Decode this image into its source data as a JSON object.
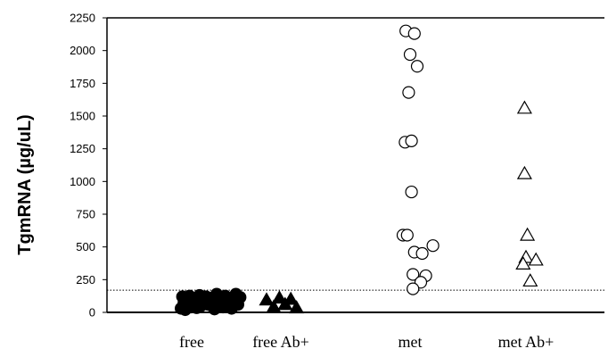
{
  "chart_data": {
    "type": "scatter",
    "ylabel": "TgmRNA (µg/uL)",
    "ylim": [
      0,
      2250
    ],
    "yticks": [
      0,
      250,
      500,
      750,
      1000,
      1250,
      1500,
      1750,
      2000,
      2250
    ],
    "categories": [
      "free",
      "free Ab+",
      "met",
      "met Ab+"
    ],
    "cutoff_line": 170,
    "series": [
      {
        "category": "free",
        "marker": "filled-circle",
        "points": [
          {
            "x": -0.15,
            "y": 30
          },
          {
            "x": -0.13,
            "y": 120
          },
          {
            "x": -0.11,
            "y": 75
          },
          {
            "x": -0.09,
            "y": 20
          },
          {
            "x": -0.07,
            "y": 100
          },
          {
            "x": -0.05,
            "y": 55
          },
          {
            "x": -0.03,
            "y": 125
          },
          {
            "x": -0.01,
            "y": 40
          },
          {
            "x": 0.01,
            "y": 90
          },
          {
            "x": 0.03,
            "y": 60
          },
          {
            "x": 0.05,
            "y": 110
          },
          {
            "x": 0.07,
            "y": 35
          },
          {
            "x": 0.09,
            "y": 80
          },
          {
            "x": 0.11,
            "y": 130
          },
          {
            "x": 0.13,
            "y": 50
          },
          {
            "x": 0.15,
            "y": 95
          },
          {
            "x": 0.17,
            "y": 70
          },
          {
            "x": 0.2,
            "y": 120
          },
          {
            "x": 0.23,
            "y": 60
          },
          {
            "x": 0.26,
            "y": 110
          },
          {
            "x": 0.29,
            "y": 85
          },
          {
            "x": 0.32,
            "y": 25
          },
          {
            "x": 0.35,
            "y": 140
          },
          {
            "x": 0.38,
            "y": 65
          },
          {
            "x": 0.41,
            "y": 105
          },
          {
            "x": 0.44,
            "y": 40
          },
          {
            "x": 0.47,
            "y": 125
          },
          {
            "x": 0.5,
            "y": 75
          },
          {
            "x": 0.53,
            "y": 110
          },
          {
            "x": 0.56,
            "y": 30
          },
          {
            "x": 0.59,
            "y": 90
          },
          {
            "x": 0.62,
            "y": 140
          },
          {
            "x": 0.65,
            "y": 60
          },
          {
            "x": 0.68,
            "y": 115
          }
        ]
      },
      {
        "category": "free Ab+",
        "marker": "filled-triangle",
        "points": [
          {
            "x": -0.2,
            "y": 95
          },
          {
            "x": -0.1,
            "y": 40
          },
          {
            "x": -0.02,
            "y": 110
          },
          {
            "x": 0.06,
            "y": 60
          },
          {
            "x": 0.14,
            "y": 100
          },
          {
            "x": 0.22,
            "y": 35
          }
        ]
      },
      {
        "category": "met",
        "marker": "open-circle",
        "points": [
          {
            "x": -0.06,
            "y": 2150
          },
          {
            "x": 0.06,
            "y": 2130
          },
          {
            "x": 0.0,
            "y": 1970
          },
          {
            "x": 0.1,
            "y": 1880
          },
          {
            "x": -0.02,
            "y": 1680
          },
          {
            "x": -0.07,
            "y": 1300
          },
          {
            "x": 0.02,
            "y": 1310
          },
          {
            "x": 0.02,
            "y": 920
          },
          {
            "x": -0.1,
            "y": 590
          },
          {
            "x": -0.04,
            "y": 590
          },
          {
            "x": 0.06,
            "y": 460
          },
          {
            "x": 0.17,
            "y": 450
          },
          {
            "x": 0.32,
            "y": 510
          },
          {
            "x": 0.04,
            "y": 290
          },
          {
            "x": 0.22,
            "y": 280
          },
          {
            "x": 0.15,
            "y": 230
          },
          {
            "x": 0.04,
            "y": 180
          }
        ]
      },
      {
        "category": "met Ab+",
        "marker": "open-triangle",
        "points": [
          {
            "x": -0.02,
            "y": 1560
          },
          {
            "x": -0.02,
            "y": 1060
          },
          {
            "x": 0.02,
            "y": 590
          },
          {
            "x": 0.0,
            "y": 420
          },
          {
            "x": 0.14,
            "y": 400
          },
          {
            "x": -0.04,
            "y": 370
          },
          {
            "x": 0.06,
            "y": 240
          }
        ]
      }
    ],
    "grid": false,
    "legend": "none"
  }
}
